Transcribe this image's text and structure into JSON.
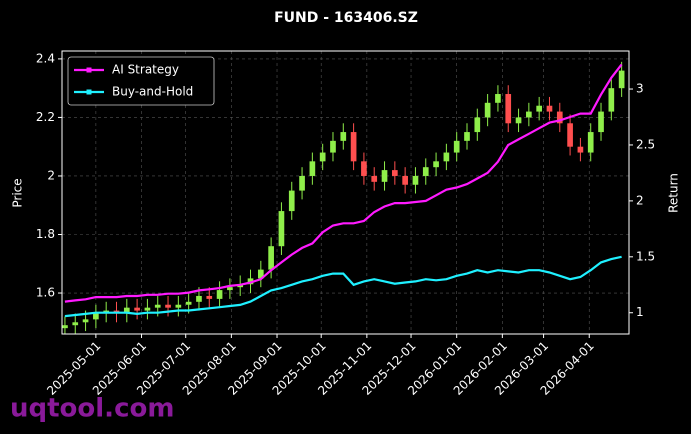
{
  "chart_data": {
    "type": "candlestick",
    "title": "FUND - 163406.SZ",
    "ylabel": "Price",
    "y2label": "Return",
    "watermark": "uqtool.com",
    "x": [
      "2025-04-10",
      "2025-04-17",
      "2025-04-24",
      "2025-05-01",
      "2025-05-08",
      "2025-05-15",
      "2025-05-22",
      "2025-05-29",
      "2025-06-05",
      "2025-06-12",
      "2025-06-19",
      "2025-06-26",
      "2025-07-03",
      "2025-07-10",
      "2025-07-17",
      "2025-07-24",
      "2025-07-31",
      "2025-08-07",
      "2025-08-14",
      "2025-08-21",
      "2025-08-28",
      "2025-09-04",
      "2025-09-11",
      "2025-09-18",
      "2025-09-25",
      "2025-10-02",
      "2025-10-09",
      "2025-10-16",
      "2025-10-23",
      "2025-10-30",
      "2025-11-06",
      "2025-11-13",
      "2025-11-20",
      "2025-11-27",
      "2025-12-04",
      "2025-12-11",
      "2025-12-18",
      "2025-12-25",
      "2026-01-01",
      "2026-01-08",
      "2026-01-15",
      "2026-01-22",
      "2026-01-29",
      "2026-02-05",
      "2026-02-12",
      "2026-02-19",
      "2026-02-26",
      "2026-03-05",
      "2026-03-12",
      "2026-03-19",
      "2026-03-26",
      "2026-04-02",
      "2026-04-09",
      "2026-04-16",
      "2026-04-23"
    ],
    "open": [
      1.48,
      1.49,
      1.5,
      1.51,
      1.53,
      1.54,
      1.53,
      1.55,
      1.54,
      1.55,
      1.56,
      1.55,
      1.56,
      1.57,
      1.59,
      1.58,
      1.61,
      1.62,
      1.63,
      1.65,
      1.68,
      1.76,
      1.88,
      1.95,
      2.0,
      2.05,
      2.08,
      2.12,
      2.15,
      2.05,
      2.0,
      1.98,
      2.02,
      2.0,
      1.97,
      2.0,
      2.03,
      2.05,
      2.08,
      2.12,
      2.15,
      2.2,
      2.25,
      2.28,
      2.18,
      2.2,
      2.22,
      2.24,
      2.22,
      2.18,
      2.1,
      2.08,
      2.15,
      2.22,
      2.3
    ],
    "high": [
      1.52,
      1.53,
      1.54,
      1.56,
      1.57,
      1.57,
      1.58,
      1.58,
      1.58,
      1.59,
      1.59,
      1.59,
      1.6,
      1.62,
      1.62,
      1.64,
      1.65,
      1.66,
      1.68,
      1.71,
      1.79,
      1.91,
      1.98,
      2.03,
      2.08,
      2.11,
      2.15,
      2.18,
      2.18,
      2.08,
      2.03,
      2.05,
      2.05,
      2.03,
      2.03,
      2.06,
      2.08,
      2.11,
      2.15,
      2.18,
      2.23,
      2.28,
      2.31,
      2.31,
      2.23,
      2.25,
      2.27,
      2.27,
      2.25,
      2.21,
      2.13,
      2.18,
      2.25,
      2.33,
      2.39
    ],
    "low": [
      1.45,
      1.46,
      1.47,
      1.48,
      1.5,
      1.5,
      1.5,
      1.51,
      1.51,
      1.52,
      1.52,
      1.52,
      1.53,
      1.54,
      1.55,
      1.55,
      1.58,
      1.59,
      1.6,
      1.62,
      1.65,
      1.73,
      1.85,
      1.92,
      1.97,
      2.02,
      2.05,
      2.09,
      2.02,
      1.97,
      1.95,
      1.95,
      1.97,
      1.94,
      1.94,
      1.97,
      2.0,
      2.02,
      2.05,
      2.09,
      2.12,
      2.17,
      2.22,
      2.15,
      2.15,
      2.17,
      2.19,
      2.19,
      2.15,
      2.07,
      2.05,
      2.05,
      2.12,
      2.19,
      2.27
    ],
    "close": [
      1.49,
      1.5,
      1.51,
      1.53,
      1.54,
      1.53,
      1.55,
      1.54,
      1.55,
      1.56,
      1.55,
      1.56,
      1.57,
      1.59,
      1.58,
      1.61,
      1.62,
      1.63,
      1.65,
      1.68,
      1.76,
      1.88,
      1.95,
      2.0,
      2.05,
      2.08,
      2.12,
      2.15,
      2.05,
      2.0,
      1.98,
      2.02,
      2.0,
      1.97,
      2.0,
      2.03,
      2.05,
      2.08,
      2.12,
      2.15,
      2.2,
      2.25,
      2.28,
      2.18,
      2.2,
      2.22,
      2.24,
      2.22,
      2.18,
      2.1,
      2.08,
      2.15,
      2.22,
      2.3,
      2.36
    ],
    "up_color": "#8fee4a",
    "down_color": "#ff4f4f",
    "series": [
      {
        "name": "AI Strategy",
        "color": "#ff1aff",
        "axis": "y2",
        "values": [
          1.1,
          1.11,
          1.12,
          1.14,
          1.14,
          1.14,
          1.15,
          1.15,
          1.16,
          1.16,
          1.17,
          1.17,
          1.18,
          1.2,
          1.21,
          1.22,
          1.24,
          1.25,
          1.27,
          1.3,
          1.38,
          1.45,
          1.52,
          1.58,
          1.62,
          1.72,
          1.78,
          1.8,
          1.8,
          1.82,
          1.9,
          1.95,
          1.98,
          1.98,
          1.99,
          2.0,
          2.05,
          2.1,
          2.12,
          2.15,
          2.2,
          2.25,
          2.35,
          2.5,
          2.55,
          2.6,
          2.65,
          2.7,
          2.72,
          2.75,
          2.78,
          2.78,
          2.95,
          3.1,
          3.22
        ]
      },
      {
        "name": "Buy-and-Hold",
        "color": "#1ff0ff",
        "axis": "y2",
        "values": [
          0.97,
          0.98,
          0.99,
          1.0,
          1.0,
          1.0,
          1.0,
          0.99,
          1.0,
          1.0,
          1.01,
          1.02,
          1.02,
          1.03,
          1.04,
          1.05,
          1.06,
          1.07,
          1.1,
          1.15,
          1.2,
          1.22,
          1.25,
          1.28,
          1.3,
          1.33,
          1.35,
          1.35,
          1.25,
          1.28,
          1.3,
          1.28,
          1.26,
          1.27,
          1.28,
          1.3,
          1.29,
          1.3,
          1.33,
          1.35,
          1.38,
          1.36,
          1.38,
          1.37,
          1.36,
          1.38,
          1.38,
          1.36,
          1.33,
          1.3,
          1.32,
          1.38,
          1.45,
          1.48,
          1.5
        ]
      }
    ],
    "xlim": [
      "2025-04-08",
      "2026-04-28"
    ],
    "xticks": [
      "2025-05-01",
      "2025-06-01",
      "2025-07-01",
      "2025-08-01",
      "2025-09-01",
      "2025-10-01",
      "2025-11-01",
      "2025-12-01",
      "2026-01-01",
      "2026-02-01",
      "2026-03-01",
      "2026-04-01"
    ],
    "ylim": [
      1.46,
      2.427
    ],
    "yticks": [
      1.6,
      1.8,
      2.0,
      2.2,
      2.4
    ],
    "y2lim": [
      0.81,
      3.34
    ],
    "y2ticks": [
      1.0,
      1.5,
      2.0,
      2.5,
      3.0
    ],
    "grid": true,
    "legend": "upper left"
  }
}
